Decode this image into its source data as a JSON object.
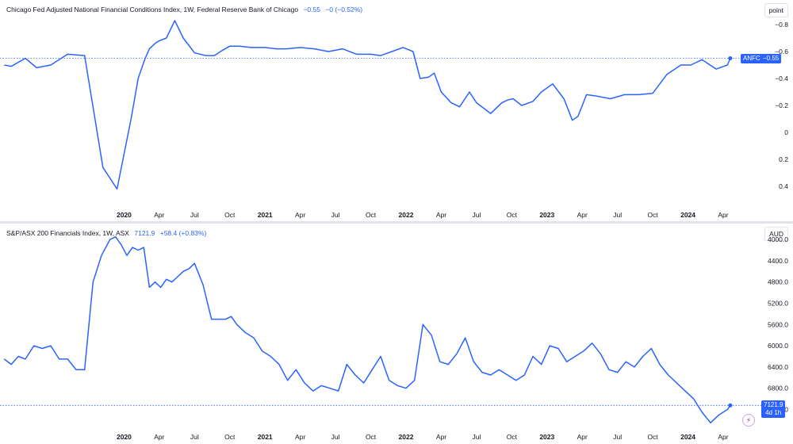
{
  "colors": {
    "series": "#2962ff",
    "text": "#131722",
    "grid": "#e0e3eb"
  },
  "chart_data": [
    {
      "type": "line",
      "legend": {
        "title": "Chicago Fed Adjusted National Financial Conditions Index, 1W, Federal Reserve Bank of Chicago",
        "value": "−0.55",
        "change": "−0 (−0.52%)"
      },
      "unit_label": "point",
      "y_inverted": true,
      "ylim": [
        0.5,
        -0.9
      ],
      "yticks": [
        "−0.8",
        "−0.6",
        "−0.4",
        "−0.2",
        "0",
        "0.2",
        "0.4"
      ],
      "ytick_values": [
        -0.8,
        -0.6,
        -0.4,
        -0.2,
        0,
        0.2,
        0.4
      ],
      "xticks": [
        "2020",
        "Apr",
        "Jul",
        "Oct",
        "2021",
        "Apr",
        "Jul",
        "Oct",
        "2022",
        "Apr",
        "Jul",
        "Oct",
        "2023",
        "Apr",
        "Jul",
        "Oct",
        "2024",
        "Apr"
      ],
      "xtick_values": [
        2020.0,
        2020.25,
        2020.5,
        2020.75,
        2021.0,
        2021.25,
        2021.5,
        2021.75,
        2022.0,
        2022.25,
        2022.5,
        2022.75,
        2023.0,
        2023.25,
        2023.5,
        2023.75,
        2024.0,
        2024.25
      ],
      "xlim": [
        2019.12,
        2024.52
      ],
      "series_label": "ANFCI",
      "last_value_label": "−0.55",
      "last_value": -0.55,
      "x": [
        2019.15,
        2019.2,
        2019.3,
        2019.38,
        2019.48,
        2019.6,
        2019.72,
        2019.85,
        2019.95,
        2020.05,
        2020.1,
        2020.15,
        2020.18,
        2020.22,
        2020.25,
        2020.3,
        2020.36,
        2020.42,
        2020.5,
        2020.58,
        2020.64,
        2020.7,
        2020.75,
        2020.82,
        2020.9,
        2021.0,
        2021.08,
        2021.15,
        2021.25,
        2021.35,
        2021.45,
        2021.55,
        2021.65,
        2021.75,
        2021.82,
        2021.9,
        2021.98,
        2022.05,
        2022.1,
        2022.16,
        2022.2,
        2022.25,
        2022.32,
        2022.38,
        2022.45,
        2022.5,
        2022.55,
        2022.6,
        2022.68,
        2022.72,
        2022.76,
        2022.82,
        2022.9,
        2022.96,
        2023.04,
        2023.12,
        2023.18,
        2023.22,
        2023.28,
        2023.35,
        2023.45,
        2023.55,
        2023.65,
        2023.75,
        2023.85,
        2023.95,
        2024.02,
        2024.1,
        2024.2,
        2024.28,
        2024.3
      ],
      "y": [
        -0.5,
        -0.49,
        -0.55,
        -0.48,
        -0.5,
        -0.58,
        -0.57,
        0.26,
        0.42,
        -0.1,
        -0.4,
        -0.55,
        -0.62,
        -0.66,
        -0.68,
        -0.7,
        -0.83,
        -0.7,
        -0.59,
        -0.57,
        -0.57,
        -0.61,
        -0.64,
        -0.64,
        -0.63,
        -0.63,
        -0.62,
        -0.62,
        -0.63,
        -0.62,
        -0.6,
        -0.62,
        -0.58,
        -0.58,
        -0.57,
        -0.6,
        -0.63,
        -0.6,
        -0.4,
        -0.41,
        -0.44,
        -0.3,
        -0.22,
        -0.19,
        -0.3,
        -0.22,
        -0.18,
        -0.14,
        -0.22,
        -0.24,
        -0.25,
        -0.2,
        -0.23,
        -0.3,
        -0.36,
        -0.25,
        -0.09,
        -0.12,
        -0.28,
        -0.27,
        -0.25,
        -0.28,
        -0.28,
        -0.29,
        -0.43,
        -0.5,
        -0.5,
        -0.54,
        -0.47,
        -0.5,
        -0.55
      ]
    },
    {
      "type": "line",
      "legend": {
        "title": "S&P/ASX 200 Financials Index, 1W, ASX",
        "value": "7121.9",
        "change": "+58.4 (+0.83%)"
      },
      "unit_label": "AUD",
      "ylim": [
        3850,
        7550
      ],
      "yticks": [
        "7200.0",
        "6800.0",
        "6400.0",
        "6000.0",
        "5600.0",
        "5200.0",
        "4800.0",
        "4400.0",
        "4000.0"
      ],
      "ytick_values": [
        7200,
        6800,
        6400,
        6000,
        5600,
        5200,
        4800,
        4400,
        4000
      ],
      "xticks": [
        "2020",
        "Apr",
        "Jul",
        "Oct",
        "2021",
        "Apr",
        "Jul",
        "Oct",
        "2022",
        "Apr",
        "Jul",
        "Oct",
        "2023",
        "Apr",
        "Jul",
        "Oct",
        "2024",
        "Apr"
      ],
      "xtick_values": [
        2020.0,
        2020.25,
        2020.5,
        2020.75,
        2021.0,
        2021.25,
        2021.5,
        2021.75,
        2022.0,
        2022.25,
        2022.5,
        2022.75,
        2023.0,
        2023.25,
        2023.5,
        2023.75,
        2024.0,
        2024.25
      ],
      "xlim": [
        2019.12,
        2024.52
      ],
      "last_value_label": "7121.9",
      "countdown_label": "4d 1h",
      "last_value": 7121.9,
      "x": [
        2019.15,
        2019.22,
        2019.28,
        2019.35,
        2019.4,
        2019.48,
        2019.55,
        2019.62,
        2019.7,
        2019.76,
        2019.84,
        2019.92,
        2019.98,
        2020.02,
        2020.06,
        2020.1,
        2020.14,
        2020.18,
        2020.22,
        2020.28,
        2020.34,
        2020.4,
        2020.46,
        2020.52,
        2020.58,
        2020.64,
        2020.7,
        2020.76,
        2020.82,
        2020.88,
        2020.94,
        2021.0,
        2021.06,
        2021.12,
        2021.2,
        2021.28,
        2021.36,
        2021.44,
        2021.52,
        2021.6,
        2021.68,
        2021.76,
        2021.84,
        2021.9,
        2021.95,
        2022.0,
        2022.05,
        2022.1,
        2022.16,
        2022.22,
        2022.28,
        2022.34,
        2022.38,
        2022.42,
        2022.48,
        2022.54,
        2022.6,
        2022.66,
        2022.72,
        2022.78,
        2022.84,
        2022.9,
        2022.96,
        2023.02,
        2023.08,
        2023.14,
        2023.2,
        2023.26,
        2023.32,
        2023.38,
        2023.44,
        2023.5,
        2023.56,
        2023.62,
        2023.68,
        2023.74,
        2023.8,
        2023.86,
        2023.92,
        2023.98,
        2024.04,
        2024.1,
        2024.16,
        2024.22,
        2024.28,
        2024.3
      ],
      "y": [
        6250,
        6300,
        6100,
        5950,
        6000,
        6280,
        6450,
        5000,
        4100,
        3950,
        4250,
        4150,
        4300,
        4200,
        4900,
        4850,
        4800,
        4600,
        4500,
        4700,
        5450,
        5500,
        5550,
        5700,
        5850,
        5950,
        6150,
        6300,
        6550,
        6650,
        6500,
        6600,
        6750,
        6700,
        6800,
        6350,
        6550,
        6700,
        6300,
        6700,
        6800,
        5600,
        5750,
        6250,
        6400,
        6150,
        5900,
        6200,
        6500,
        6650,
        6400,
        6450,
        6600,
        6750,
        6300,
        6100,
        6350,
        6300,
        6100,
        6150,
        6050,
        6200,
        6300,
        6500,
        6400,
        6450,
        6300,
        6150,
        6100,
        6400,
        6700,
        6800,
        6950,
        7200,
        7450,
        7200,
        7350,
        7200,
        7050,
        7121.9,
        7100,
        7121.9,
        7121.9,
        7121.9,
        7121.9,
        7121.9
      ],
      "x_real": [
        2019.15,
        2019.2,
        2019.25,
        2019.3,
        2019.36,
        2019.42,
        2019.48,
        2019.54,
        2019.6,
        2019.66,
        2019.72,
        2019.78,
        2019.84,
        2019.9,
        2019.94,
        2019.98,
        2020.02,
        2020.06,
        2020.1,
        2020.14,
        2020.18,
        2020.22,
        2020.26,
        2020.3,
        2020.34,
        2020.38,
        2020.42,
        2020.46,
        2020.5,
        2020.56,
        2020.62,
        2020.68,
        2020.72,
        2020.76,
        2020.8,
        2020.86,
        2020.92,
        2020.98,
        2021.04,
        2021.1,
        2021.16,
        2021.22,
        2021.28,
        2021.34,
        2021.4,
        2021.46,
        2021.52,
        2021.58,
        2021.64,
        2021.7,
        2021.76,
        2021.82,
        2021.88,
        2021.94,
        2022.0,
        2022.06,
        2022.12,
        2022.18,
        2022.24,
        2022.3,
        2022.36,
        2022.42,
        2022.48,
        2022.54,
        2022.6,
        2022.66,
        2022.72,
        2022.78,
        2022.84,
        2022.9,
        2022.96,
        2023.02,
        2023.08,
        2023.14,
        2023.2,
        2023.26,
        2023.32,
        2023.38,
        2023.44,
        2023.5,
        2023.56,
        2023.62,
        2023.68,
        2023.74,
        2023.8,
        2023.86,
        2023.92,
        2023.98,
        2024.04,
        2024.1,
        2024.16,
        2024.22,
        2024.28,
        2024.3
      ],
      "y_real": [
        6250,
        6350,
        6200,
        6250,
        6000,
        6050,
        6000,
        6250,
        6250,
        6450,
        6450,
        4800,
        4300,
        4000,
        3950,
        4100,
        4300,
        4150,
        4200,
        4150,
        4900,
        4800,
        4900,
        4750,
        4800,
        4700,
        4600,
        4550,
        4450,
        4850,
        5500,
        5500,
        5500,
        5450,
        5600,
        5750,
        5850,
        6100,
        6200,
        6350,
        6650,
        6450,
        6700,
        6850,
        6750,
        6800,
        6850,
        6350,
        6550,
        6700,
        6450,
        6200,
        6650,
        6750,
        6800,
        6650,
        5600,
        5800,
        6300,
        6350,
        6150,
        5850,
        6300,
        6500,
        6550,
        6450,
        6550,
        6650,
        6550,
        6200,
        6350,
        6000,
        6050,
        6300,
        6200,
        6100,
        5950,
        6150,
        6450,
        6500,
        6300,
        6400,
        6200,
        6050,
        6350,
        6550,
        6700,
        6850,
        7000,
        7250,
        7450,
        7300,
        7200,
        7121.9
      ]
    }
  ]
}
